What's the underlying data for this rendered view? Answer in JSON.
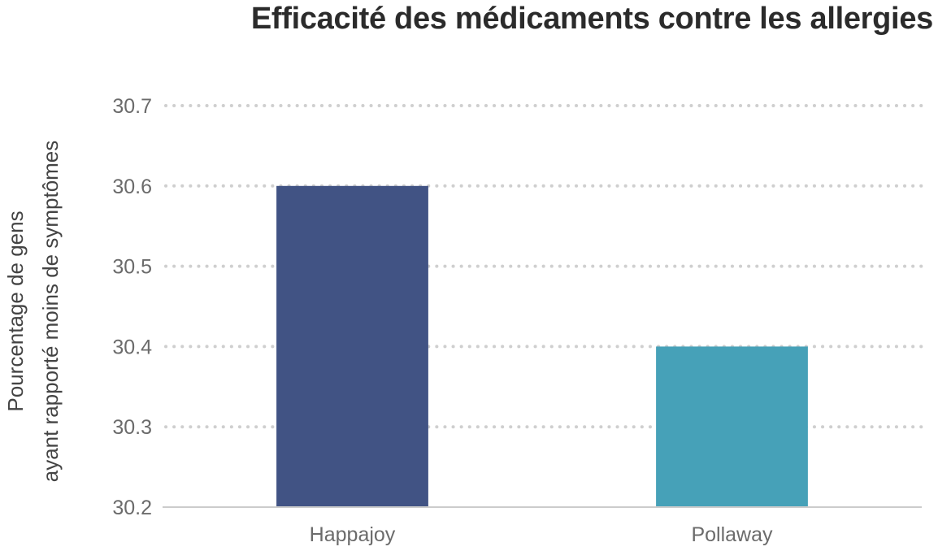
{
  "chart_data": {
    "type": "bar",
    "title": "Efficacité des médicaments contre les allergies",
    "ylabel_lines": [
      "Pourcentage de gens",
      "ayant rapporté moins de symptômes"
    ],
    "xlabel": "",
    "categories": [
      "Happajoy",
      "Pollaway"
    ],
    "values": [
      30.6,
      30.4
    ],
    "bar_colors": [
      "#415384",
      "#46a1b8"
    ],
    "ylim": [
      30.2,
      30.7
    ],
    "yticks": [
      "30.2",
      "30.3",
      "30.4",
      "30.5",
      "30.6",
      "30.7"
    ],
    "grid": true,
    "legend": "none"
  }
}
